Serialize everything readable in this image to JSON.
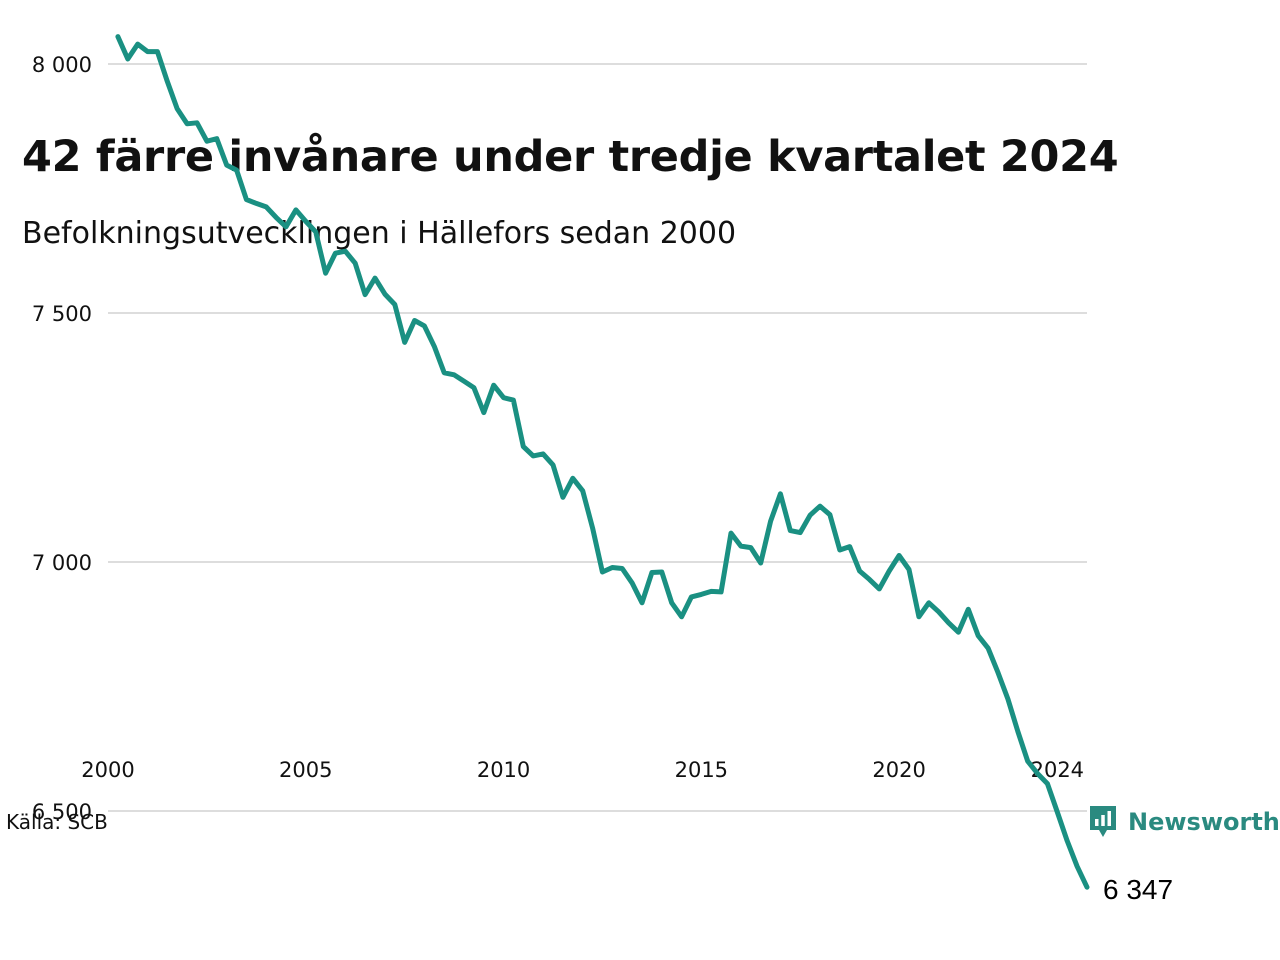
{
  "header": {
    "title": "42 färre invånare under tredje kvartalet 2024",
    "subtitle": "Befolkningsutvecklingen i Hällefors sedan 2000"
  },
  "footer": {
    "source": "Källa: SCB",
    "brand": "Newsworthy",
    "brand_icon": "newsworthy-logo-icon"
  },
  "colors": {
    "line": "#1a9082",
    "grid": "#dddddd",
    "brand": "#2a8a80"
  },
  "chart_data": {
    "type": "line",
    "title": "42 färre invånare under tredje kvartalet 2024",
    "subtitle": "Befolkningsutvecklingen i Hällefors sedan 2000",
    "xlabel": "",
    "ylabel": "",
    "xlim": [
      2000,
      2024.75
    ],
    "ylim": [
      6250,
      8100
    ],
    "grid": true,
    "x_ticks": [
      2000,
      2005,
      2010,
      2015,
      2020,
      2024
    ],
    "x_tick_labels": [
      "2000",
      "2005",
      "2010",
      "2015",
      "2020",
      "2024"
    ],
    "y_ticks": [
      6500,
      7000,
      7500,
      8000
    ],
    "y_tick_labels": [
      "6 500",
      "7 000",
      "7 500",
      "8 000"
    ],
    "end_label": "6 347",
    "series": [
      {
        "x": [
          2000.25,
          2000.5,
          2000.75,
          2001,
          2001.25,
          2001.5,
          2001.75,
          2002,
          2002.25,
          2002.5,
          2002.75,
          2003,
          2003.25,
          2003.5,
          2003.75,
          2004,
          2004.25,
          2004.5,
          2004.75,
          2005,
          2005.25,
          2005.5,
          2005.75,
          2006,
          2006.25,
          2006.5,
          2006.75,
          2007,
          2007.25,
          2007.5,
          2007.75,
          2008,
          2008.25,
          2008.5,
          2008.75,
          2009,
          2009.25,
          2009.5,
          2009.75,
          2010,
          2010.25,
          2010.5,
          2010.75,
          2011,
          2011.25,
          2011.5,
          2011.75,
          2012,
          2012.25,
          2012.5,
          2012.75,
          2013,
          2013.25,
          2013.5,
          2013.75,
          2014,
          2014.25,
          2014.5,
          2014.75,
          2015,
          2015.25,
          2015.5,
          2015.75,
          2016,
          2016.25,
          2016.5,
          2016.75,
          2017,
          2017.25,
          2017.5,
          2017.75,
          2018,
          2018.25,
          2018.5,
          2018.75,
          2019,
          2019.25,
          2019.5,
          2019.75,
          2020,
          2020.25,
          2020.5,
          2020.75,
          2021,
          2021.25,
          2021.5,
          2021.75,
          2022,
          2022.25,
          2022.5,
          2022.75,
          2023,
          2023.25,
          2023.5,
          2023.75,
          2024,
          2024.25,
          2024.5,
          2024.75
        ],
        "y": [
          8055,
          8010,
          8040,
          8025,
          8025,
          7965,
          7910,
          7880,
          7882,
          7845,
          7850,
          7797,
          7787,
          7728,
          7720,
          7713,
          7692,
          7673,
          7707,
          7684,
          7663,
          7580,
          7620,
          7624,
          7600,
          7537,
          7570,
          7538,
          7517,
          7441,
          7485,
          7474,
          7433,
          7380,
          7376,
          7363,
          7350,
          7300,
          7355,
          7330,
          7325,
          7232,
          7213,
          7217,
          7195,
          7130,
          7168,
          7143,
          7068,
          6980,
          6989,
          6987,
          6958,
          6918,
          6979,
          6980,
          6918,
          6890,
          6930,
          6935,
          6941,
          6940,
          7058,
          7032,
          7029,
          6998,
          7082,
          7137,
          7063,
          7059,
          7094,
          7112,
          7095,
          7024,
          7031,
          6982,
          6965,
          6946,
          6982,
          7013,
          6985,
          6890,
          6918,
          6900,
          6878,
          6859,
          6905,
          6852,
          6827,
          6778,
          6725,
          6660,
          6600,
          6575,
          6555,
          6498,
          6440,
          6389,
          6347
        ]
      }
    ]
  }
}
